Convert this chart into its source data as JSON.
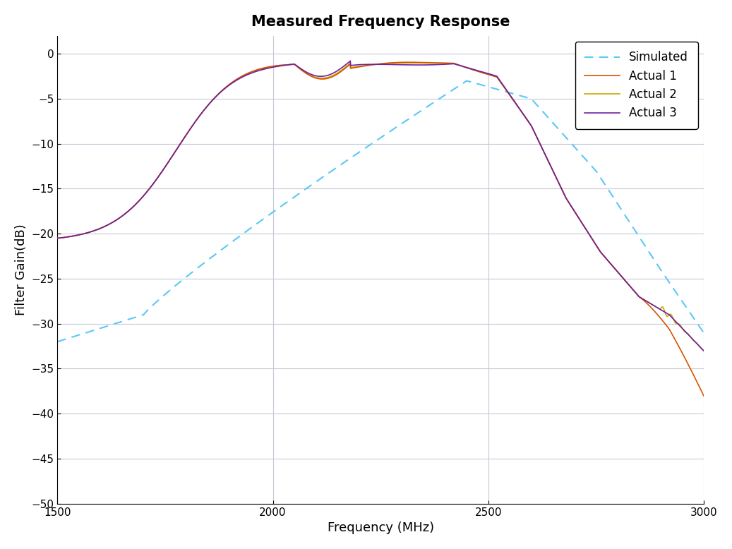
{
  "title": "Measured Frequency Response",
  "xlabel": "Frequency (MHz)",
  "ylabel": "Filter Gain(dB)",
  "xlim": [
    1500,
    3000
  ],
  "ylim": [
    -50,
    2
  ],
  "yticks": [
    0,
    -5,
    -10,
    -15,
    -20,
    -25,
    -30,
    -35,
    -40,
    -45,
    -50
  ],
  "xticks": [
    1500,
    2000,
    2500,
    3000
  ],
  "grid_color": "#c8c8d8",
  "background_color": "#ffffff",
  "simulated_color": "#5bc8f5",
  "actual1_color": "#d45500",
  "actual2_color": "#ccaa00",
  "actual3_color": "#7020a0",
  "legend_labels": [
    "Simulated",
    "Actual 1",
    "Actual 2",
    "Actual 3"
  ]
}
